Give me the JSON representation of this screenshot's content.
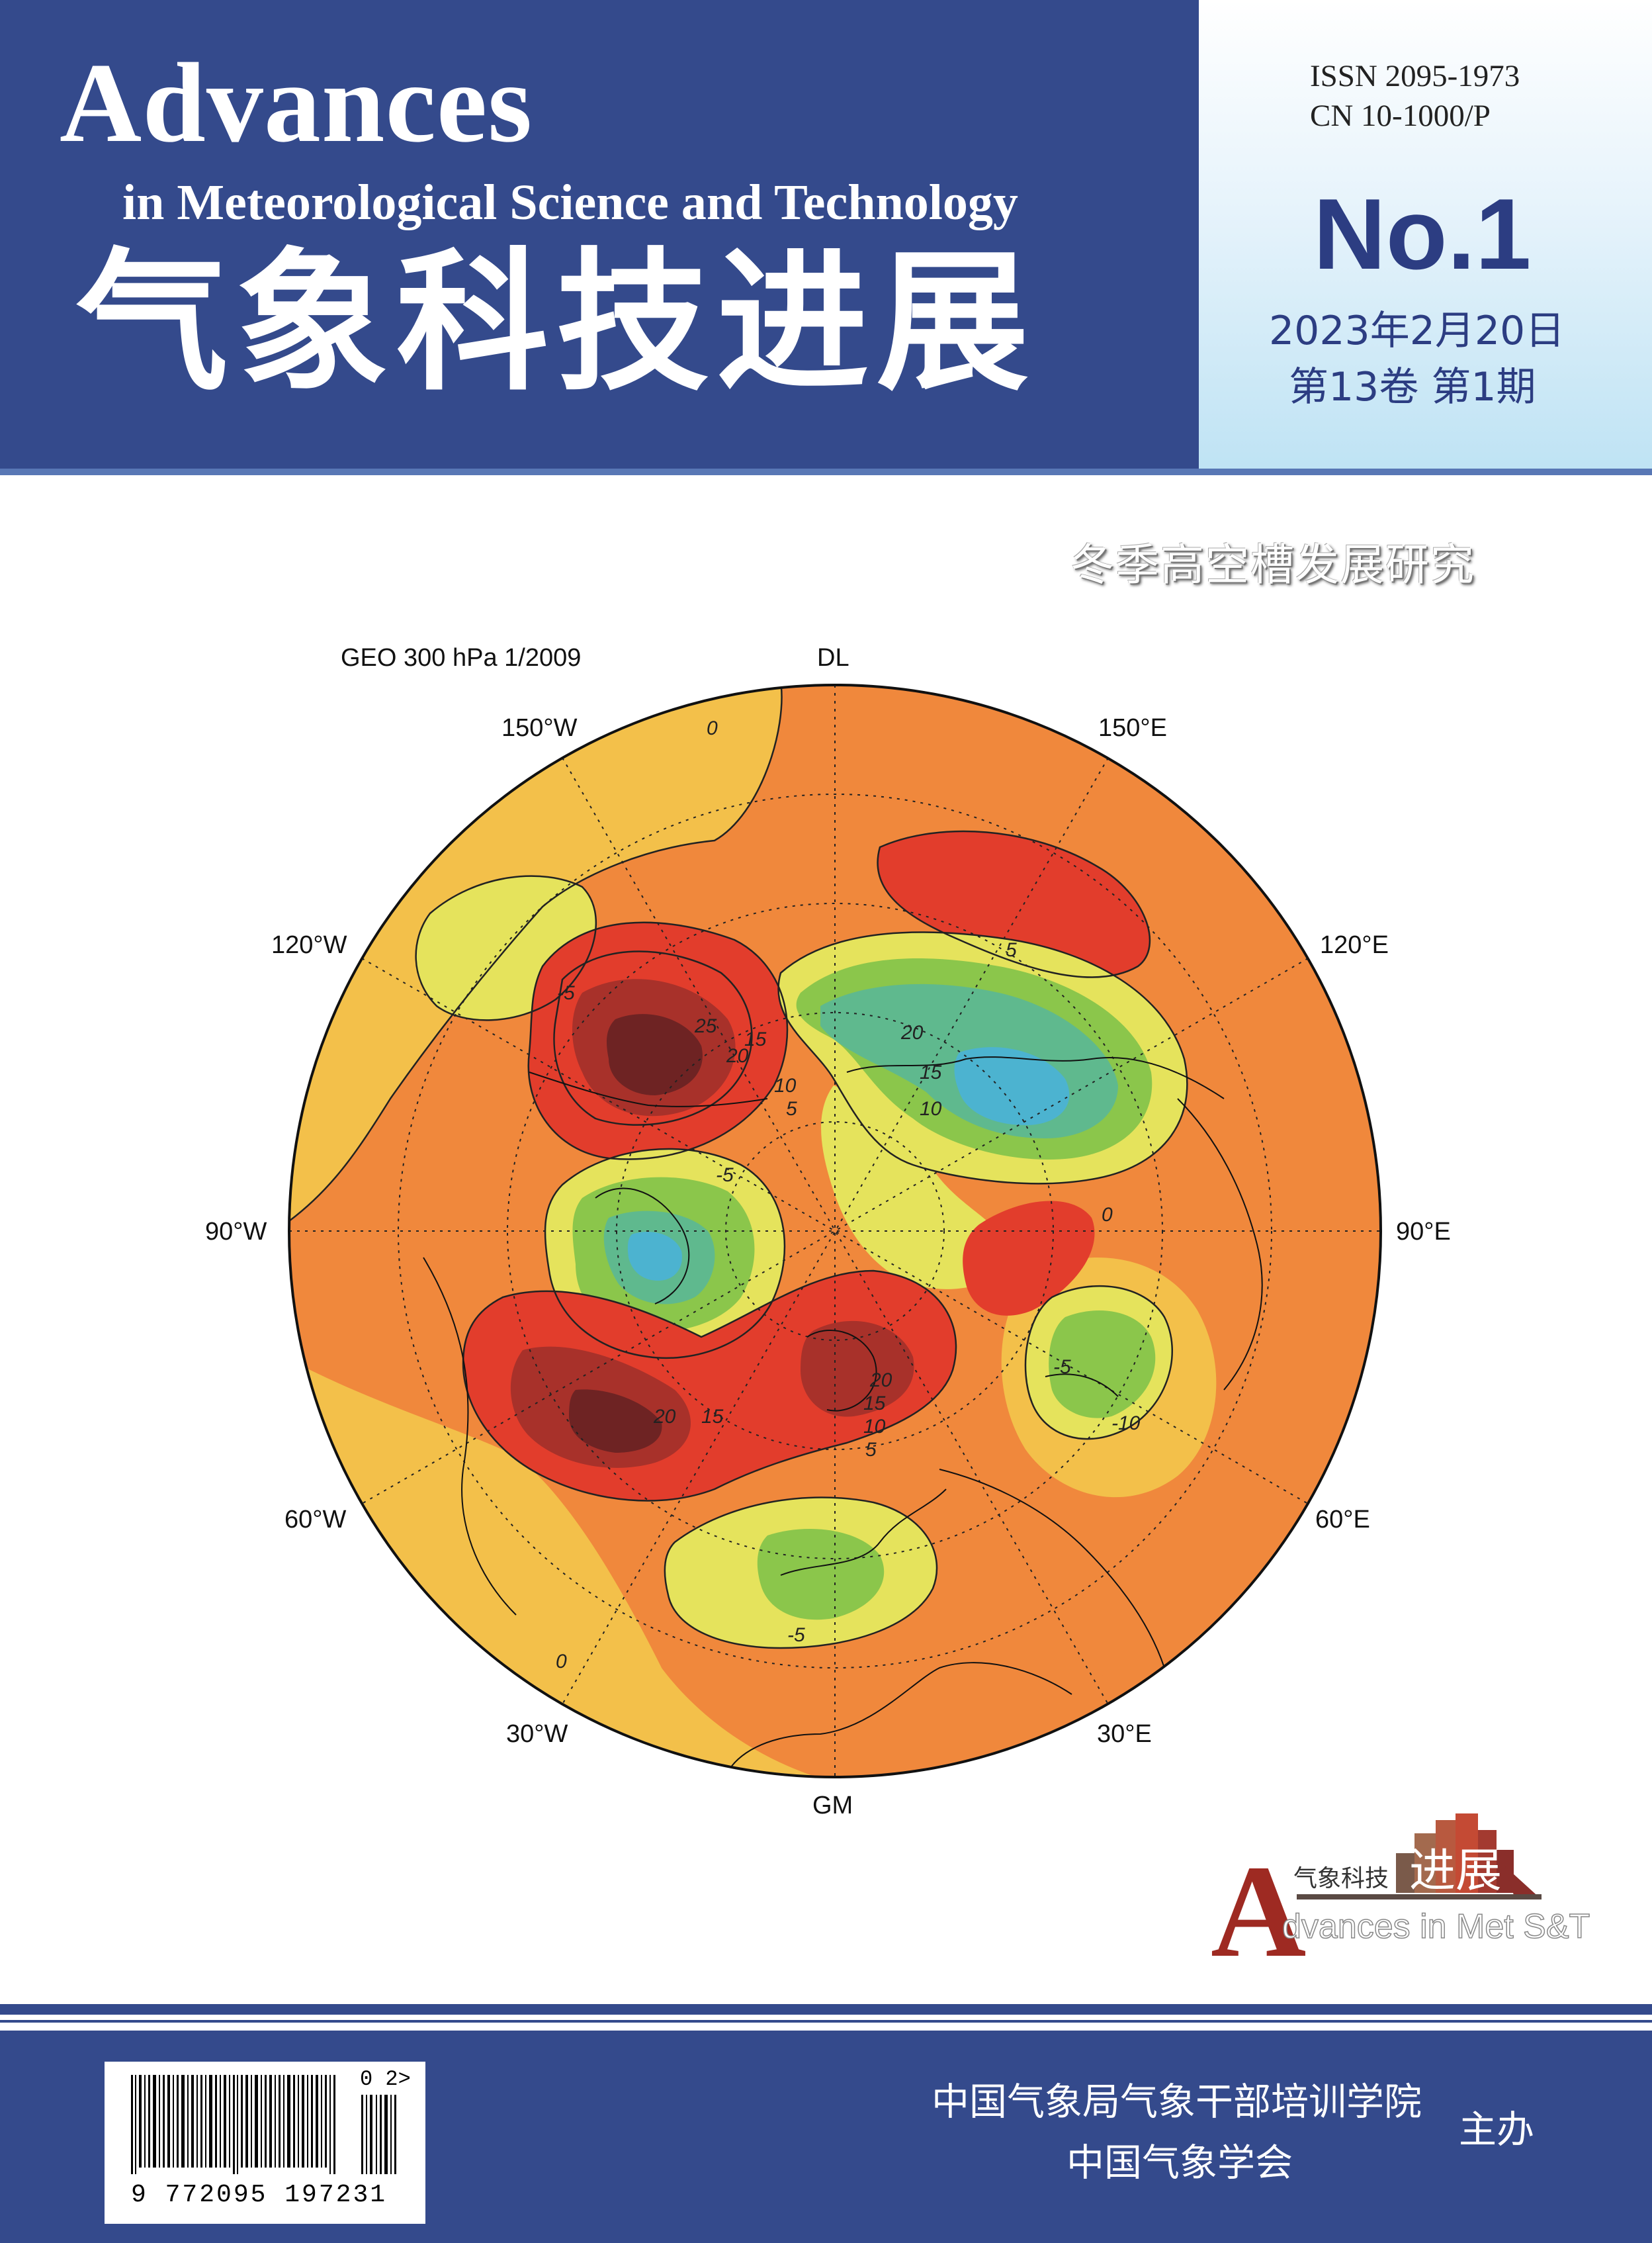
{
  "masthead": {
    "title_en_main": "Advances",
    "title_en_sub": "in Meteorological Science and Technology",
    "title_cn": "气象科技进展"
  },
  "info": {
    "issn": "ISSN 2095-1973",
    "cn": "CN 10-1000/P",
    "issue_no": "No.1",
    "date": "2023年2月20日",
    "volume": "第13卷  第1期"
  },
  "feature": {
    "title": "冬季高空槽发展研究"
  },
  "map": {
    "title": "GEO 300 hPa 1/2009",
    "longitude_labels": {
      "top": "DL",
      "bottom": "GM",
      "upper_left": "150°W",
      "upper_right": "150°E",
      "left_upper": "120°W",
      "right_upper": "120°E",
      "left": "90°W",
      "right": "90°E",
      "left_lower": "60°W",
      "right_lower": "60°E",
      "lower_left": "30°W",
      "lower_right": "30°E"
    },
    "contour_labels": [
      "0",
      "5",
      "-5",
      "25",
      "20",
      "15",
      "10",
      "20",
      "15",
      "10",
      "-5",
      "5",
      "0",
      "20",
      "15",
      "-5",
      "-10",
      "-5",
      "0",
      "5",
      "10",
      "15",
      "20"
    ],
    "colors": {
      "ocean_base": "#f0883c",
      "pos_low": "#f3c04a",
      "pos_mid": "#e23d2c",
      "pos_high": "#8a2424",
      "neg_low": "#e5e35c",
      "neg_mid": "#8bc64b",
      "neg_high": "#4cb3d0"
    }
  },
  "logo": {
    "cn_small": "气象科技",
    "cn_big": "进展",
    "letter": "A",
    "en": "dvances in Met S&T"
  },
  "footer": {
    "barcode_number": "9 772095 197231",
    "barcode_addon": "0 2>",
    "sponsor1": "中国气象局气象干部培训学院",
    "sponsor2": "中国气象学会",
    "role": "主办"
  }
}
